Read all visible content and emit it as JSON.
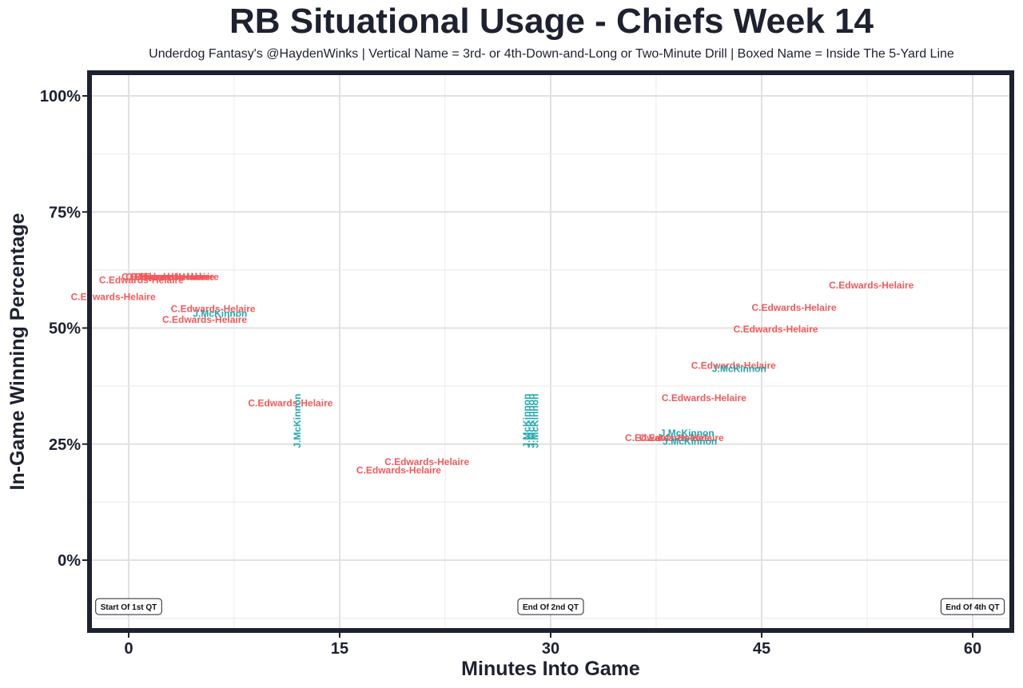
{
  "chart_data": {
    "type": "scatter",
    "title": "RB Situational Usage - Chiefs Week 14",
    "subtitle": "Underdog Fantasy's @HaydenWinks | Vertical Name = 3rd- or 4th-Down-and-Long or Two-Minute Drill | Boxed Name = Inside The 5-Yard Line",
    "xlabel": "Minutes Into Game",
    "ylabel": "In-Game Winning Percentage",
    "xlim": [
      -3,
      62
    ],
    "ylim": [
      -15,
      105
    ],
    "x_ticks": [
      0,
      15,
      30,
      45,
      60
    ],
    "x_tick_labels": [
      "0",
      "15",
      "30",
      "45",
      "60"
    ],
    "y_ticks": [
      0,
      25,
      50,
      75,
      100
    ],
    "y_tick_labels": [
      "0%",
      "25%",
      "50%",
      "75%",
      "100%"
    ],
    "grid": true,
    "colors": {
      "C.Edwards-Helaire": "#f4585a",
      "J.McKinnon": "#22a8b0"
    },
    "series": [
      {
        "name": "C.Edwards-Helaire",
        "points": [
          {
            "x": 2.5,
            "y": 61,
            "label": "C.Edwards-Helaire"
          },
          {
            "x": 2.8,
            "y": 61,
            "label": "C.Edwards-Helaire"
          },
          {
            "x": 3.1,
            "y": 61,
            "label": "C.Edwards-Helaire"
          },
          {
            "x": 3.4,
            "y": 61,
            "label": "C.Edwards-Helaire"
          },
          {
            "x": 0.9,
            "y": 60.3,
            "label": "C.Edwards-Helaire"
          },
          {
            "x": -1.1,
            "y": 56.7,
            "label": "C.Edwards-Helaire"
          },
          {
            "x": 6.0,
            "y": 54.1,
            "label": "C.Edwards-Helaire"
          },
          {
            "x": 5.4,
            "y": 51.8,
            "label": "C.Edwards-Helaire"
          },
          {
            "x": 11.5,
            "y": 33.8,
            "label": "C.Edwards-Helaire"
          },
          {
            "x": 21.2,
            "y": 21.2,
            "label": "C.Edwards-Helaire"
          },
          {
            "x": 19.2,
            "y": 19.4,
            "label": "C.Edwards-Helaire"
          },
          {
            "x": 38.3,
            "y": 26.3,
            "label": "C.Edwards-Helaire"
          },
          {
            "x": 39.3,
            "y": 26.3,
            "label": "C.Edwards-Helaire"
          },
          {
            "x": 40.9,
            "y": 34.9,
            "label": "C.Edwards-Helaire"
          },
          {
            "x": 43.0,
            "y": 41.9,
            "label": "C.Edwards-Helaire"
          },
          {
            "x": 46.0,
            "y": 49.7,
            "label": "C.Edwards-Helaire"
          },
          {
            "x": 47.3,
            "y": 54.4,
            "label": "C.Edwards-Helaire"
          },
          {
            "x": 52.8,
            "y": 59.2,
            "label": "C.Edwards-Helaire"
          }
        ]
      },
      {
        "name": "J.McKinnon",
        "points": [
          {
            "x": 6.5,
            "y": 53.1,
            "label": "J.McKinnon",
            "vertical": false
          },
          {
            "x": 12.0,
            "y": 30.0,
            "label": "J.McKinnon",
            "vertical": true
          },
          {
            "x": 28.3,
            "y": 30.0,
            "label": "J.McKinnon",
            "vertical": true
          },
          {
            "x": 28.6,
            "y": 30.0,
            "label": "J.McKinnon",
            "vertical": true
          },
          {
            "x": 28.9,
            "y": 30.0,
            "label": "J.McKinnon",
            "vertical": true
          },
          {
            "x": 39.7,
            "y": 27.4,
            "label": "J.McKinnon",
            "vertical": false
          },
          {
            "x": 39.9,
            "y": 25.6,
            "label": "J.McKinnon",
            "vertical": false
          },
          {
            "x": 43.4,
            "y": 41.2,
            "label": "J.McKinnon",
            "vertical": false
          }
        ]
      }
    ],
    "annotations": [
      {
        "x": 0,
        "y": -10,
        "text": "Start Of 1st QT"
      },
      {
        "x": 30,
        "y": -10,
        "text": "End Of 2nd QT"
      },
      {
        "x": 60,
        "y": -10,
        "text": "End Of 4th QT"
      }
    ]
  }
}
